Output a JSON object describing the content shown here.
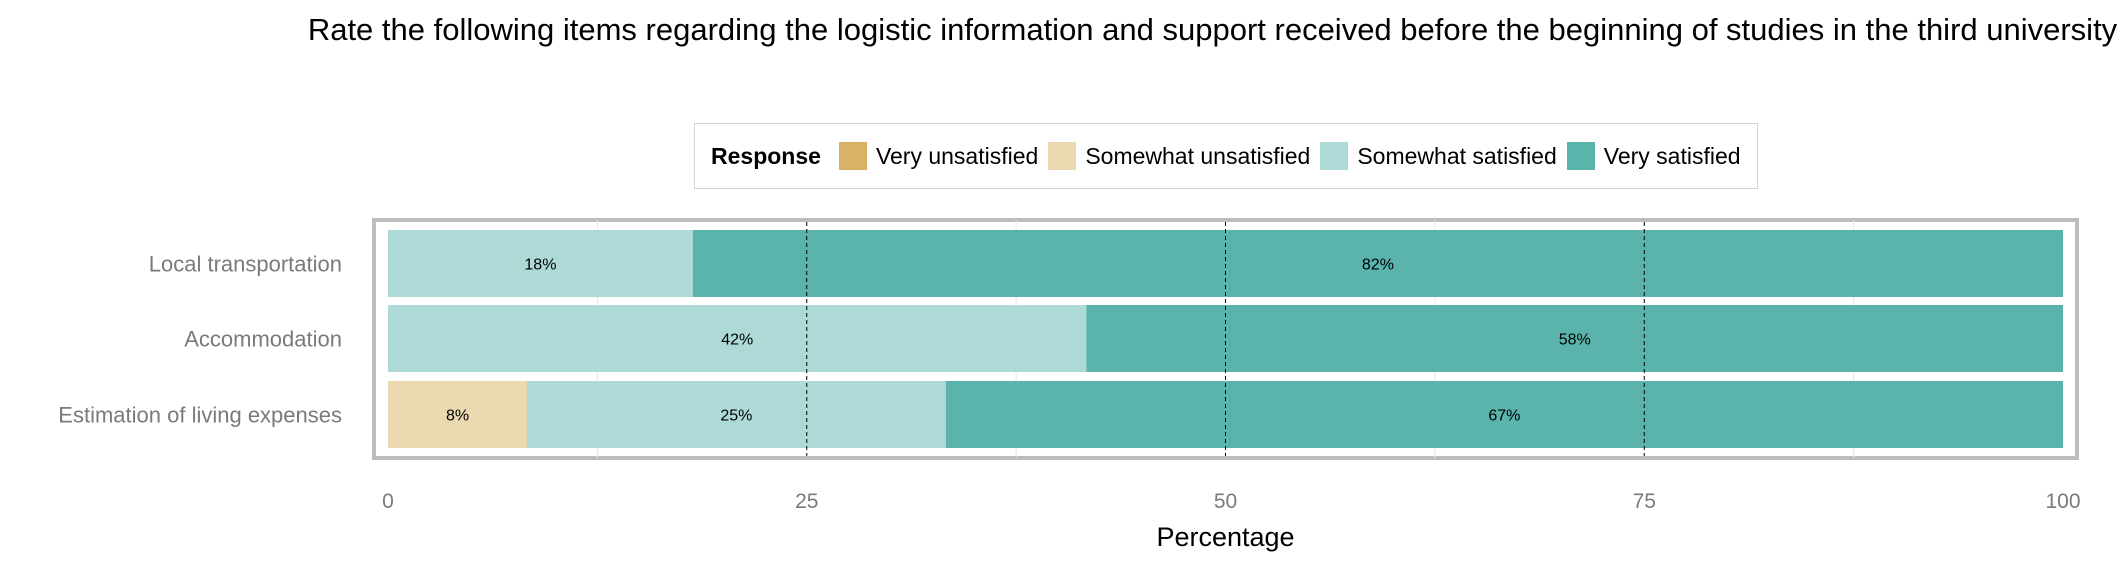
{
  "chart_data": {
    "type": "bar",
    "orientation": "horizontal",
    "stacked": true,
    "title": "Rate the following items regarding the logistic information and support received before the beginning of studies in the third university",
    "xlabel": "Percentage",
    "ylabel": "",
    "xlim": [
      0,
      100
    ],
    "x_ticks": [
      0,
      25,
      50,
      75,
      100
    ],
    "grid": true,
    "legend_title": "Response",
    "legend_position": "top",
    "categories": [
      "Local transportation",
      "Accommodation",
      "Estimation of living expenses"
    ],
    "series": [
      {
        "name": "Very unsatisfied",
        "color": "#d8b365",
        "values": [
          0,
          0,
          0
        ]
      },
      {
        "name": "Somewhat unsatisfied",
        "color": "#ebd9b2",
        "values": [
          0,
          0,
          8.3
        ]
      },
      {
        "name": "Somewhat satisfied",
        "color": "#add9d7",
        "values": [
          18.2,
          41.7,
          25
        ]
      },
      {
        "name": "Very satisfied",
        "color": "#5ab4ac",
        "values": [
          81.8,
          58.3,
          66.7
        ]
      }
    ],
    "data_labels": [
      [
        "",
        "",
        "18%",
        "82%"
      ],
      [
        "",
        "",
        "42%",
        "58%"
      ],
      [
        "",
        "8%",
        "25%",
        "67%"
      ]
    ]
  }
}
